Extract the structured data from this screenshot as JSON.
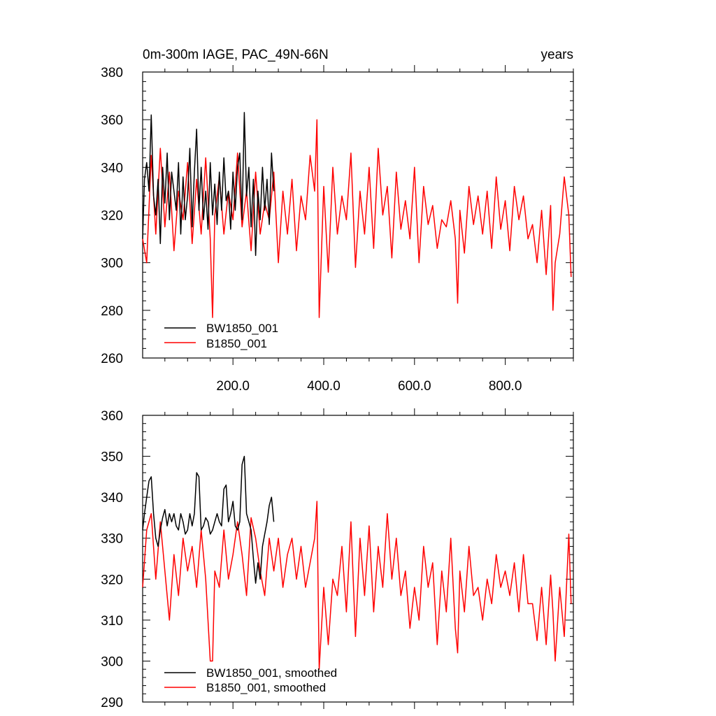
{
  "chart_data": [
    {
      "type": "line",
      "title_left": "0m-300m IAGE, PAC_49N-66N",
      "title_right": "years",
      "xlim": [
        1,
        950
      ],
      "ylim": [
        260,
        380
      ],
      "yticks": [
        260,
        280,
        300,
        320,
        340,
        360,
        380
      ],
      "xticks": [
        200,
        400,
        600,
        800
      ],
      "xtick_labels": [
        "200.0",
        "400.0",
        "600.0",
        "800.0"
      ],
      "show_x_labels": true,
      "grid": false,
      "legend_position": "bottom-left",
      "series": [
        {
          "name": "BW1850_001",
          "color": "#000000",
          "x": [
            1,
            5,
            10,
            15,
            20,
            25,
            30,
            35,
            40,
            45,
            50,
            55,
            60,
            65,
            70,
            75,
            80,
            85,
            90,
            95,
            100,
            105,
            110,
            115,
            120,
            125,
            130,
            135,
            140,
            145,
            150,
            155,
            160,
            165,
            170,
            175,
            180,
            185,
            190,
            195,
            200,
            205,
            210,
            215,
            220,
            225,
            230,
            235,
            240,
            245,
            250,
            255,
            260,
            265,
            270,
            275,
            280,
            285,
            290
          ],
          "values": [
            310,
            335,
            342,
            330,
            362,
            328,
            320,
            335,
            308,
            340,
            325,
            346,
            318,
            338,
            330,
            322,
            342,
            312,
            336,
            318,
            328,
            348,
            315,
            338,
            356,
            322,
            340,
            318,
            330,
            314,
            342,
            320,
            333,
            316,
            338,
            322,
            344,
            326,
            330,
            314,
            338,
            322,
            340,
            346,
            318,
            363,
            328,
            340,
            315,
            335,
            303,
            330,
            318,
            340,
            322,
            335,
            316,
            346,
            330
          ]
        },
        {
          "name": "B1850_001",
          "color": "#ff0000",
          "x": [
            1,
            10,
            20,
            30,
            40,
            50,
            60,
            70,
            80,
            90,
            100,
            110,
            120,
            130,
            140,
            150,
            155,
            160,
            170,
            180,
            190,
            200,
            210,
            220,
            230,
            240,
            250,
            260,
            270,
            280,
            290,
            300,
            310,
            320,
            330,
            340,
            350,
            360,
            370,
            380,
            385,
            390,
            400,
            410,
            420,
            430,
            440,
            450,
            460,
            470,
            480,
            490,
            500,
            510,
            520,
            530,
            540,
            550,
            560,
            570,
            580,
            590,
            600,
            610,
            620,
            630,
            640,
            650,
            660,
            670,
            680,
            690,
            695,
            700,
            710,
            720,
            730,
            740,
            750,
            760,
            770,
            780,
            790,
            800,
            810,
            820,
            830,
            840,
            850,
            860,
            870,
            880,
            890,
            900,
            905,
            910,
            920,
            930,
            940,
            945
          ],
          "values": [
            310,
            300,
            345,
            312,
            348,
            315,
            338,
            305,
            330,
            318,
            342,
            308,
            335,
            312,
            344,
            310,
            277,
            320,
            336,
            312,
            330,
            318,
            346,
            315,
            330,
            305,
            338,
            312,
            325,
            318,
            338,
            300,
            330,
            312,
            335,
            305,
            328,
            318,
            345,
            330,
            360,
            277,
            332,
            296,
            340,
            312,
            328,
            318,
            346,
            298,
            330,
            312,
            340,
            306,
            348,
            320,
            332,
            302,
            338,
            314,
            326,
            310,
            340,
            300,
            332,
            316,
            324,
            306,
            318,
            315,
            326,
            310,
            283,
            322,
            304,
            332,
            316,
            328,
            312,
            330,
            306,
            336,
            314,
            326,
            305,
            332,
            318,
            328,
            310,
            316,
            300,
            322,
            295,
            324,
            280,
            300,
            312,
            336,
            320,
            294
          ]
        }
      ]
    },
    {
      "type": "line",
      "xlim": [
        1,
        950
      ],
      "ylim": [
        290,
        360
      ],
      "yticks": [
        290,
        300,
        310,
        320,
        330,
        340,
        350,
        360
      ],
      "xticks": [
        200,
        400,
        600,
        800
      ],
      "show_x_labels": false,
      "grid": false,
      "legend_position": "bottom-left",
      "series": [
        {
          "name": "BW1850_001, smoothed",
          "color": "#000000",
          "x": [
            1,
            5,
            10,
            15,
            20,
            25,
            30,
            35,
            40,
            45,
            50,
            55,
            60,
            65,
            70,
            75,
            80,
            85,
            90,
            95,
            100,
            105,
            110,
            115,
            120,
            125,
            130,
            135,
            140,
            145,
            150,
            155,
            160,
            165,
            170,
            175,
            180,
            185,
            190,
            195,
            200,
            205,
            210,
            215,
            220,
            225,
            230,
            235,
            240,
            245,
            250,
            255,
            260,
            265,
            270,
            275,
            280,
            285,
            290
          ],
          "values": [
            332,
            336,
            340,
            344,
            345,
            336,
            330,
            328,
            332,
            335,
            337,
            333,
            336,
            334,
            336,
            333,
            332,
            336,
            334,
            331,
            332,
            336,
            333,
            336,
            346,
            345,
            332,
            333,
            335,
            334,
            331,
            332,
            334,
            336,
            334,
            333,
            342,
            343,
            334,
            336,
            339,
            333,
            332,
            334,
            348,
            350,
            336,
            334,
            332,
            325,
            319,
            324,
            320,
            328,
            331,
            334,
            338,
            340,
            334
          ]
        },
        {
          "name": "B1850_001, smoothed",
          "color": "#ff0000",
          "x": [
            1,
            10,
            20,
            30,
            40,
            50,
            60,
            70,
            80,
            90,
            100,
            110,
            120,
            130,
            140,
            150,
            155,
            160,
            170,
            180,
            190,
            200,
            210,
            220,
            230,
            240,
            250,
            260,
            270,
            280,
            290,
            300,
            310,
            320,
            330,
            340,
            350,
            360,
            370,
            380,
            385,
            390,
            400,
            410,
            420,
            430,
            440,
            450,
            460,
            470,
            480,
            490,
            500,
            510,
            520,
            530,
            540,
            550,
            560,
            570,
            580,
            590,
            600,
            610,
            620,
            630,
            640,
            650,
            660,
            670,
            680,
            690,
            695,
            700,
            710,
            720,
            730,
            740,
            750,
            760,
            770,
            780,
            790,
            800,
            810,
            820,
            830,
            840,
            850,
            860,
            870,
            880,
            890,
            900,
            905,
            910,
            920,
            930,
            940,
            945
          ],
          "values": [
            318,
            332,
            336,
            320,
            334,
            322,
            310,
            326,
            316,
            330,
            322,
            328,
            318,
            332,
            320,
            300,
            300,
            322,
            318,
            332,
            320,
            326,
            334,
            326,
            316,
            335,
            330,
            322,
            316,
            330,
            322,
            330,
            318,
            326,
            330,
            320,
            328,
            318,
            324,
            330,
            339,
            298,
            318,
            304,
            320,
            316,
            328,
            312,
            334,
            306,
            330,
            316,
            333,
            312,
            328,
            318,
            336,
            320,
            330,
            316,
            322,
            308,
            318,
            310,
            328,
            318,
            324,
            304,
            322,
            312,
            330,
            308,
            302,
            322,
            312,
            328,
            316,
            318,
            310,
            320,
            314,
            326,
            318,
            322,
            316,
            324,
            312,
            326,
            314,
            314,
            305,
            318,
            304,
            321,
            312,
            300,
            318,
            306,
            331,
            314
          ]
        }
      ]
    }
  ]
}
